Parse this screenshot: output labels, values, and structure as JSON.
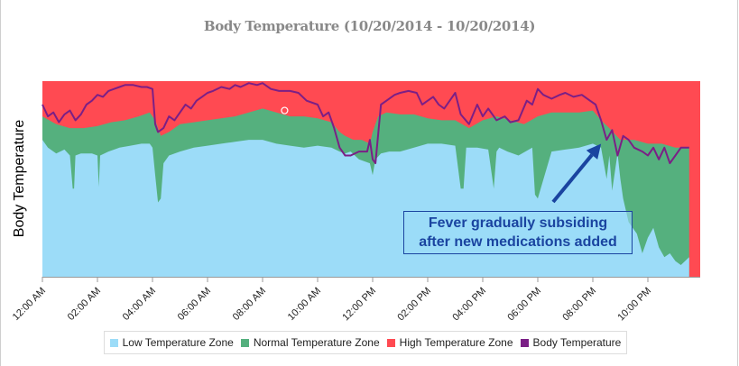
{
  "chart_data": {
    "type": "area",
    "stacked": true,
    "title": "Body Temperature (10/20/2014 - 10/20/2014)",
    "xlabel": "",
    "ylabel": "Body Temperature",
    "x_unit": "hours since 12:00 AM",
    "xlim": [
      0,
      23.5
    ],
    "ylim": [
      0,
      100
    ],
    "y_ticks_shown": false,
    "x_ticks": [
      {
        "hour": 0,
        "label": "12:00 AM"
      },
      {
        "hour": 2,
        "label": "02:00 AM"
      },
      {
        "hour": 4,
        "label": "04:00 AM"
      },
      {
        "hour": 6,
        "label": "06:00 AM"
      },
      {
        "hour": 8,
        "label": "08:00 AM"
      },
      {
        "hour": 10,
        "label": "10:00 AM"
      },
      {
        "hour": 12,
        "label": "12:00 PM"
      },
      {
        "hour": 14,
        "label": "02:00 PM"
      },
      {
        "hour": 16,
        "label": "04:00 PM"
      },
      {
        "hour": 18,
        "label": "06:00 PM"
      },
      {
        "hour": 20,
        "label": "08:00 PM"
      },
      {
        "hour": 22,
        "label": "10:00 PM"
      }
    ],
    "legend_position": "bottom",
    "series": [
      {
        "name": "Low Temperature Zone",
        "color": "#9cdcf8",
        "kind": "area",
        "x": [
          0,
          0.2,
          0.5,
          0.8,
          1.0,
          1.1,
          1.15,
          1.2,
          1.4,
          1.8,
          2.0,
          2.05,
          2.1,
          2.4,
          2.8,
          3.2,
          3.6,
          3.9,
          4.0,
          4.1,
          4.2,
          4.3,
          4.4,
          4.6,
          5.0,
          5.5,
          6.0,
          6.5,
          7.0,
          7.5,
          8.0,
          8.5,
          9.0,
          9.5,
          10.0,
          10.5,
          10.8,
          11.0,
          11.2,
          11.5,
          11.9,
          12.0,
          12.1,
          12.3,
          12.6,
          13.0,
          13.5,
          14.0,
          14.5,
          15.0,
          15.2,
          15.3,
          15.4,
          15.8,
          16.2,
          16.4,
          16.5,
          16.6,
          16.9,
          17.3,
          17.8,
          17.9,
          18.0,
          18.5,
          19.0,
          19.5,
          20.0,
          20.3,
          20.5,
          20.6,
          20.7,
          20.9,
          21.0,
          21.1,
          21.3,
          21.6,
          21.8,
          22.0,
          22.2,
          22.4,
          22.6,
          22.8,
          23.0,
          23.2,
          23.5
        ],
        "values": [
          70,
          66,
          63,
          65,
          62,
          45,
          45,
          62,
          63,
          63,
          62,
          46,
          62,
          64,
          66,
          67,
          68,
          68,
          66,
          52,
          38,
          40,
          58,
          62,
          64,
          66,
          67,
          68,
          69,
          70,
          70,
          68,
          67,
          66,
          67,
          66,
          64,
          63,
          64,
          60,
          58,
          52,
          60,
          63,
          64,
          64,
          66,
          68,
          68,
          67,
          45,
          45,
          66,
          66,
          65,
          45,
          64,
          66,
          64,
          62,
          66,
          42,
          40,
          64,
          65,
          66,
          68,
          66,
          50,
          62,
          44,
          63,
          50,
          40,
          28,
          22,
          12,
          20,
          25,
          15,
          10,
          12,
          8,
          6,
          10
        ]
      },
      {
        "name": "Normal Temperature Zone",
        "color": "#55b07e",
        "kind": "area",
        "x": [
          0,
          0.5,
          1.0,
          1.5,
          2.0,
          2.5,
          3.0,
          3.5,
          3.9,
          4.1,
          4.3,
          4.6,
          5.0,
          5.5,
          6.0,
          6.5,
          7.0,
          7.5,
          8.0,
          8.5,
          9.0,
          9.5,
          10.0,
          10.5,
          10.8,
          11.0,
          11.3,
          11.6,
          11.9,
          12.0,
          12.2,
          12.5,
          13.0,
          13.5,
          14.0,
          14.5,
          15.0,
          15.5,
          16.0,
          16.5,
          17.0,
          17.5,
          18.0,
          18.5,
          19.0,
          19.5,
          20.0,
          20.3,
          20.6,
          21.0,
          21.5,
          22.0,
          22.5,
          23.0,
          23.5
        ],
        "values": [
          82,
          78,
          76,
          76,
          77,
          79,
          80,
          82,
          84,
          80,
          72,
          74,
          78,
          79,
          80,
          81,
          82,
          84,
          86,
          84,
          82,
          82,
          81,
          79,
          74,
          72,
          70,
          70,
          68,
          74,
          82,
          84,
          83,
          83,
          81,
          80,
          80,
          76,
          80,
          82,
          80,
          78,
          82,
          84,
          84,
          84,
          85,
          80,
          76,
          70,
          70,
          68,
          68,
          66,
          66
        ]
      },
      {
        "name": "High Temperature Zone",
        "color": "#ff4a52",
        "kind": "area",
        "x": [
          0,
          23.5
        ],
        "values": [
          100,
          100
        ]
      },
      {
        "name": "Body Temperature",
        "color": "#7b1f86",
        "kind": "line",
        "x": [
          0,
          0.2,
          0.4,
          0.6,
          0.8,
          1.0,
          1.2,
          1.4,
          1.6,
          1.8,
          2.0,
          2.2,
          2.4,
          2.6,
          2.8,
          3.0,
          3.3,
          3.6,
          3.8,
          4.0,
          4.1,
          4.2,
          4.4,
          4.6,
          4.8,
          5.0,
          5.2,
          5.4,
          5.6,
          5.8,
          6.0,
          6.2,
          6.5,
          6.8,
          7.0,
          7.2,
          7.5,
          7.8,
          8.0,
          8.3,
          8.6,
          9.0,
          9.3,
          9.6,
          10.0,
          10.2,
          10.4,
          10.6,
          10.8,
          11.0,
          11.2,
          11.5,
          11.8,
          11.9,
          12.0,
          12.1,
          12.3,
          12.5,
          12.8,
          13.0,
          13.3,
          13.6,
          13.8,
          14.0,
          14.2,
          14.4,
          14.6,
          14.8,
          15.0,
          15.2,
          15.5,
          15.8,
          16.0,
          16.2,
          16.5,
          16.8,
          17.0,
          17.3,
          17.6,
          17.8,
          18.0,
          18.2,
          18.5,
          18.8,
          19.0,
          19.3,
          19.6,
          19.9,
          20.1,
          20.3,
          20.5,
          20.7,
          20.9,
          21.1,
          21.3,
          21.5,
          21.8,
          22.0,
          22.2,
          22.4,
          22.6,
          22.8,
          23.0,
          23.2,
          23.5
        ],
        "values": [
          88,
          82,
          84,
          79,
          83,
          85,
          80,
          83,
          88,
          90,
          93,
          92,
          95,
          96,
          97,
          98,
          98,
          97,
          97,
          96,
          78,
          74,
          76,
          82,
          80,
          84,
          88,
          86,
          90,
          92,
          94,
          95,
          97,
          96,
          98,
          97,
          99,
          98,
          99,
          96,
          95,
          95,
          94,
          90,
          88,
          82,
          84,
          76,
          66,
          62,
          62,
          64,
          64,
          70,
          60,
          58,
          88,
          90,
          93,
          94,
          95,
          94,
          88,
          90,
          92,
          88,
          86,
          90,
          94,
          83,
          78,
          88,
          82,
          86,
          80,
          82,
          79,
          80,
          90,
          88,
          96,
          93,
          91,
          93,
          94,
          92,
          93,
          90,
          88,
          80,
          70,
          75,
          62,
          72,
          70,
          66,
          64,
          62,
          66,
          60,
          66,
          58,
          62,
          66,
          66
        ]
      }
    ],
    "marker": {
      "series": "Body Temperature",
      "hour": 8.8,
      "value": 85
    },
    "annotation": {
      "text_line1": "Fever gradually subsiding",
      "text_line2": "after new medications added",
      "arrow_to_hour": 20.3,
      "arrow_to_value": 68,
      "color": "#1a44a0"
    }
  }
}
